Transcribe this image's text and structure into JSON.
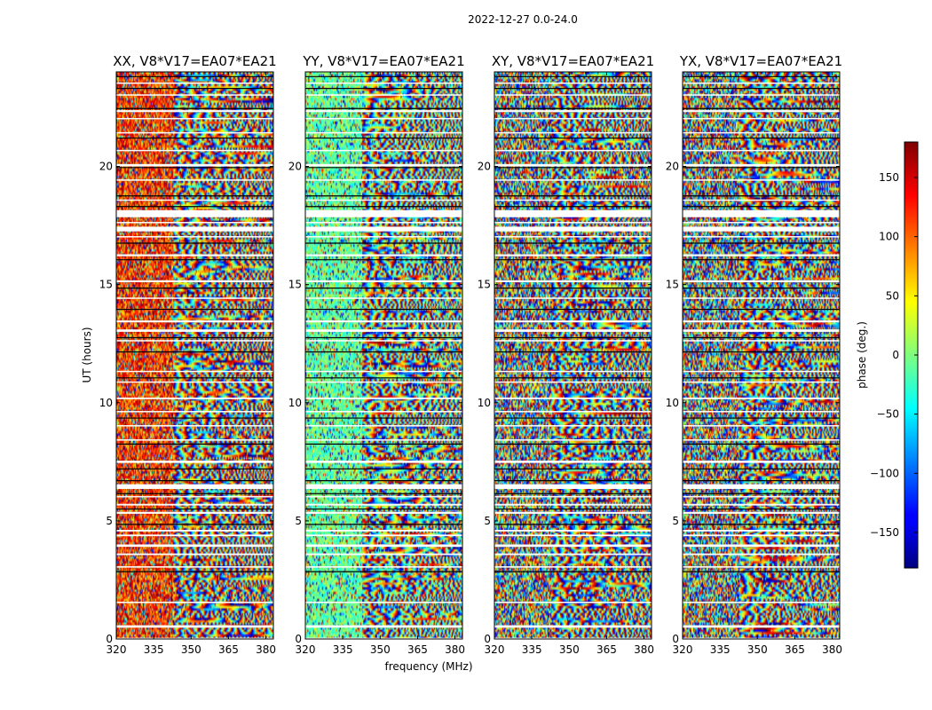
{
  "suptitle": "2022-12-27 0.0-24.0",
  "colors": {
    "frame": "#000000",
    "gap": "#ffffff",
    "colormap": "jet"
  },
  "chart_data": {
    "type": "heatmap",
    "suptitle": "2022-12-27 0.0-24.0",
    "x_label": "frequency (MHz)",
    "y_label": "UT (hours)",
    "colorbar_label": "phase (deg.)",
    "xlim": [
      320,
      383
    ],
    "ylim": [
      0,
      24
    ],
    "x_ticks": [
      320,
      335,
      350,
      365,
      380
    ],
    "y_ticks": [
      0,
      5,
      10,
      15,
      20
    ],
    "clim": [
      -180,
      180
    ],
    "colorbar_ticks": [
      150,
      100,
      50,
      0,
      -50,
      -100,
      -150
    ],
    "colormap": "jet",
    "panels": [
      {
        "title": "XX, V8*V17=EA07*EA21",
        "pol": "XX",
        "mean_phase_low_band_deg": 120,
        "noise": "high"
      },
      {
        "title": "YY, V8*V17=EA07*EA21",
        "pol": "YY",
        "mean_phase_low_band_deg": -10,
        "noise": "medium"
      },
      {
        "title": "XY, V8*V17=EA07*EA21",
        "pol": "XY",
        "mean_phase_low_band_deg": null,
        "noise": "random"
      },
      {
        "title": "YX, V8*V17=EA07*EA21",
        "pol": "YX",
        "mean_phase_low_band_deg": null,
        "noise": "random"
      }
    ],
    "fringe_onset_mhz": 343,
    "flagged_ut_bands_hours": [
      [
        0.02,
        0.05
      ],
      [
        0.48,
        0.58
      ],
      [
        1.52,
        1.58
      ],
      [
        3.02,
        3.08
      ],
      [
        3.55,
        3.62
      ],
      [
        3.9,
        4.0
      ],
      [
        4.35,
        4.42
      ],
      [
        4.55,
        4.62
      ],
      [
        5.3,
        5.38
      ],
      [
        5.65,
        5.72
      ],
      [
        6.0,
        6.05
      ],
      [
        6.35,
        6.55
      ],
      [
        7.45,
        7.55
      ],
      [
        8.4,
        8.45
      ],
      [
        9.0,
        9.05
      ],
      [
        9.6,
        9.65
      ],
      [
        10.15,
        10.22
      ],
      [
        10.85,
        10.9
      ],
      [
        11.3,
        11.35
      ],
      [
        12.6,
        12.65
      ],
      [
        13.0,
        13.1
      ],
      [
        13.4,
        13.48
      ],
      [
        14.4,
        14.45
      ],
      [
        15.1,
        15.18
      ],
      [
        16.2,
        16.28
      ],
      [
        17.0,
        17.05
      ],
      [
        17.25,
        17.45
      ],
      [
        17.6,
        17.65
      ],
      [
        17.85,
        18.15
      ],
      [
        18.55,
        18.6
      ],
      [
        19.4,
        19.45
      ],
      [
        20.0,
        20.1
      ],
      [
        20.65,
        20.7
      ],
      [
        21.4,
        21.45
      ],
      [
        22.0,
        22.05
      ],
      [
        22.3,
        22.38
      ],
      [
        23.0,
        23.05
      ],
      [
        23.5,
        23.55
      ]
    ],
    "dark_ut_lines_hours": [
      2.85,
      4.85,
      5.5,
      6.15,
      6.7,
      7.2,
      8.25,
      9.35,
      11.05,
      12.15,
      12.75,
      13.95,
      14.85,
      16.05,
      16.75,
      18.3,
      18.75,
      19.95,
      21.2,
      22.45,
      23.3,
      23.8
    ]
  }
}
